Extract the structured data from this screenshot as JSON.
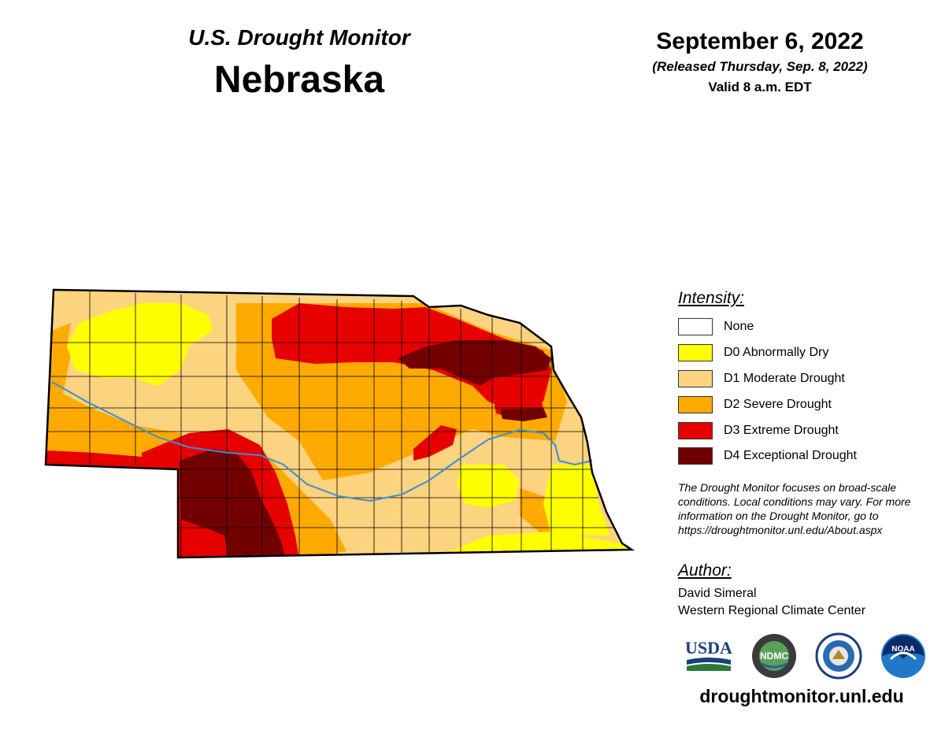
{
  "header": {
    "subtitle": "U.S. Drought Monitor",
    "title": "Nebraska",
    "date": "September 6, 2022",
    "released": "(Released Thursday, Sep. 8, 2022)",
    "valid": "Valid 8 a.m. EDT"
  },
  "legend": {
    "title": "Intensity:",
    "items": [
      {
        "label": "None",
        "color": "#ffffff"
      },
      {
        "label": "D0 Abnormally Dry",
        "color": "#ffff00"
      },
      {
        "label": "D1 Moderate Drought",
        "color": "#fcd37f"
      },
      {
        "label": "D2 Severe Drought",
        "color": "#ffaa00"
      },
      {
        "label": "D3 Extreme Drought",
        "color": "#e60000"
      },
      {
        "label": "D4 Exceptional Drought",
        "color": "#730000"
      }
    ]
  },
  "note": "The Drought Monitor focuses on broad-scale conditions. Local conditions may vary. For more information on the Drought Monitor, go to https://droughtmonitor.unl.edu/About.aspx",
  "author": {
    "title": "Author:",
    "name": "David Simeral",
    "org": "Western Regional Climate Center"
  },
  "logos": {
    "usda": "USDA",
    "ndmc": "NDMC",
    "noaa": "NOAA"
  },
  "url": "droughtmonitor.unl.edu",
  "map": {
    "state": "Nebraska",
    "river_color": "#3c8fd0",
    "border_color": "#000000"
  }
}
